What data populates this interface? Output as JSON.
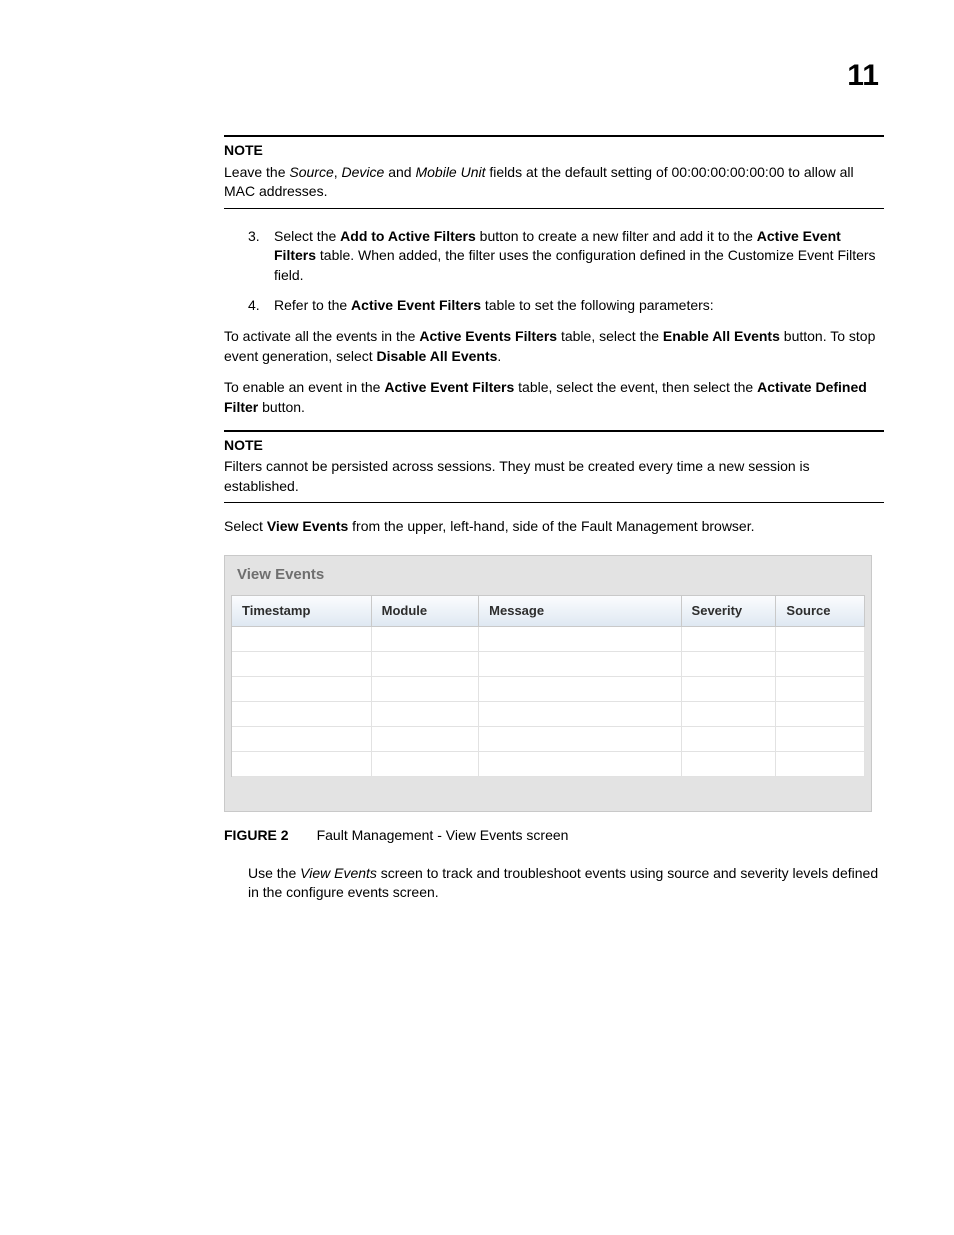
{
  "page_number": "11",
  "note1": {
    "label": "NOTE",
    "parts": [
      "Leave the ",
      "Source",
      ", ",
      "Device",
      " and ",
      "Mobile Unit",
      " fields at the default setting of 00:00:00:00:00:00 to allow all MAC addresses."
    ]
  },
  "step3": {
    "num": "3.",
    "parts": [
      "Select the ",
      "Add to Active Filters",
      " button to create a new filter and add it to the ",
      "Active Event Filters",
      " table. When added, the filter uses the configuration defined in the Customize Event Filters field."
    ]
  },
  "step4": {
    "num": "4.",
    "parts": [
      "Refer to the ",
      "Active Event Filters",
      " table to set the following parameters:"
    ]
  },
  "activate": {
    "parts": [
      "To activate all the events in the ",
      "Active Events Filters",
      " table, select the ",
      "Enable All Events",
      " button. To stop event generation, select ",
      "Disable All Events",
      "."
    ]
  },
  "enable": {
    "parts": [
      "To enable an event in the ",
      "Active Event Filters",
      " table, select the event, then select the ",
      "Activate Defined Filter",
      " button."
    ]
  },
  "note2": {
    "label": "NOTE",
    "text": "Filters cannot be persisted across sessions. They must be created every time a new session is established."
  },
  "select_view": {
    "parts": [
      "Select ",
      "View Events",
      " from the upper, left-hand, side of the Fault Management browser."
    ]
  },
  "figure": {
    "title": "View Events",
    "columns": [
      "Timestamp",
      "Module",
      "Message",
      "Severity",
      "Source"
    ],
    "col_widths": [
      "22%",
      "17%",
      "32%",
      "15%",
      "14%"
    ],
    "empty_rows": 6,
    "caption_label": "FIGURE 2",
    "caption_text": "Fault Management - View Events screen"
  },
  "use_view": {
    "parts": [
      "Use the ",
      "View Events",
      " screen to track and troubleshoot events using source and severity levels defined in the configure events screen."
    ]
  }
}
